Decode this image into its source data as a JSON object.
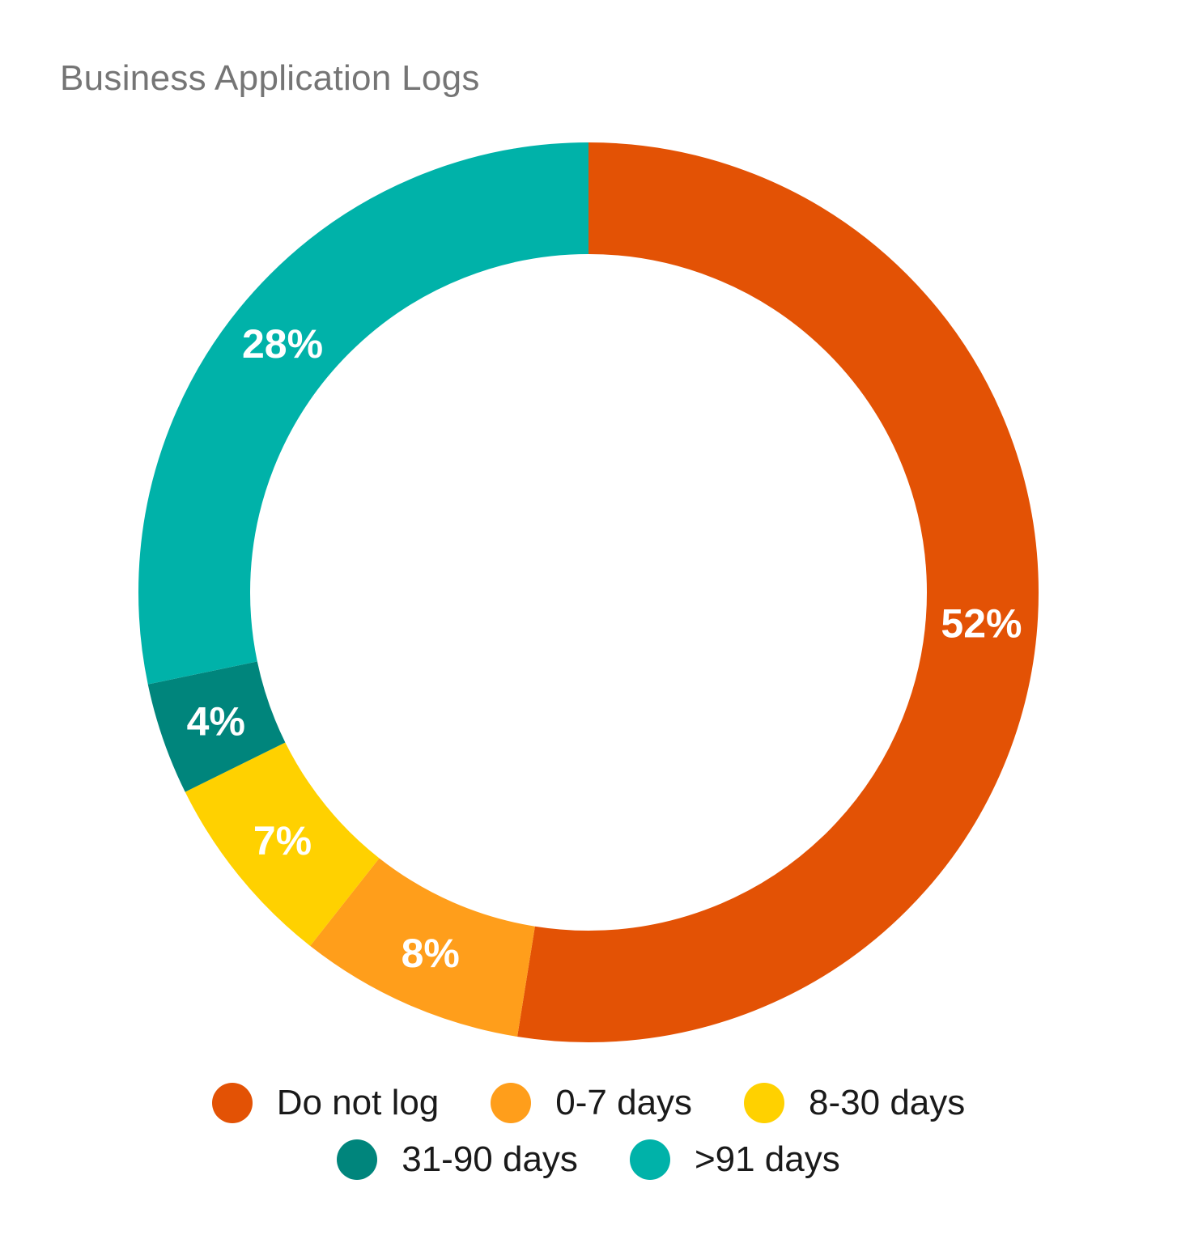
{
  "title": "Business Application Logs",
  "chart_data": {
    "type": "pie",
    "variant": "donut",
    "title": "Business Application Logs",
    "start_angle": "12 o'clock, clockwise",
    "categories": [
      "Do not log",
      "0-7 days",
      "8-30 days",
      "31-90 days",
      ">91 days"
    ],
    "values": [
      52,
      8,
      7,
      4,
      28
    ],
    "labels": [
      "52%",
      "8%",
      "7%",
      "4%",
      "28%"
    ],
    "colors": [
      "#E35205",
      "#FF9E1B",
      "#FFD100",
      "#00857C",
      "#00B2A9"
    ],
    "legend_position": "bottom"
  },
  "legend": {
    "row1": [
      {
        "label": "Do not log",
        "color": "#E35205"
      },
      {
        "label": "0-7 days",
        "color": "#FF9E1B"
      },
      {
        "label": "8-30 days",
        "color": "#FFD100"
      }
    ],
    "row2": [
      {
        "label": "31-90 days",
        "color": "#00857C"
      },
      {
        "label": ">91 days",
        "color": "#00B2A9"
      }
    ]
  }
}
